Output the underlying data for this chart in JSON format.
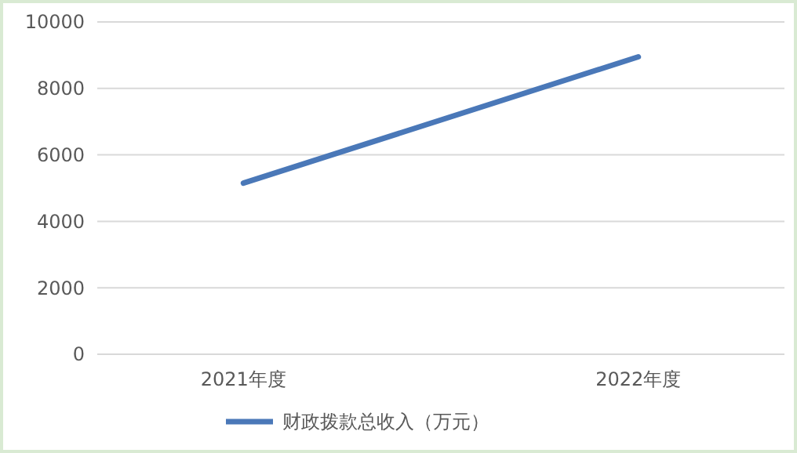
{
  "chart_data": {
    "type": "line",
    "categories": [
      "2021年度",
      "2022年度"
    ],
    "series": [
      {
        "name": "财政拨款总收入（万元）",
        "color": "#4a78b8",
        "values": [
          5150,
          8950
        ]
      }
    ],
    "ylim": [
      0,
      10000
    ],
    "yticks": [
      0,
      2000,
      4000,
      6000,
      8000,
      10000
    ],
    "grid": "y",
    "legend": "bottom",
    "marker": "none",
    "line_style": "solid"
  }
}
